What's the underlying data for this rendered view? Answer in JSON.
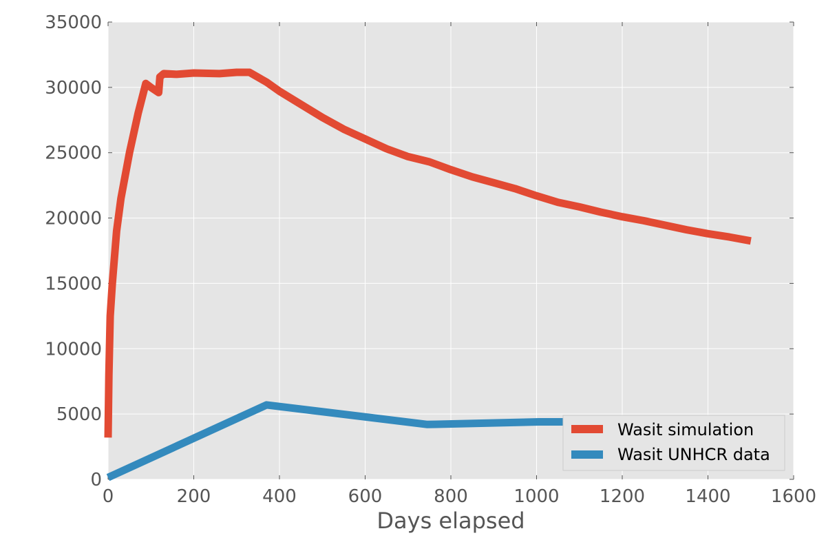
{
  "chart_data": {
    "type": "line",
    "title": "",
    "xlabel": "Days elapsed",
    "ylabel": "",
    "xlim": [
      0,
      1600
    ],
    "ylim": [
      0,
      35000
    ],
    "xticks": [
      0,
      200,
      400,
      600,
      800,
      1000,
      1200,
      1400,
      1600
    ],
    "yticks": [
      0,
      5000,
      10000,
      15000,
      20000,
      25000,
      30000,
      35000
    ],
    "grid": true,
    "legend_position": "lower-right",
    "colors": {
      "background": "#e5e5e5",
      "grid": "#ffffff"
    },
    "series": [
      {
        "name": "Wasit simulation",
        "color": "#e24a33",
        "points": [
          [
            0,
            3200
          ],
          [
            2,
            8000
          ],
          [
            5,
            12500
          ],
          [
            10,
            15000
          ],
          [
            20,
            19000
          ],
          [
            30,
            21500
          ],
          [
            50,
            25000
          ],
          [
            70,
            28000
          ],
          [
            88,
            30300
          ],
          [
            100,
            30000
          ],
          [
            118,
            29600
          ],
          [
            121,
            30800
          ],
          [
            130,
            31050
          ],
          [
            160,
            31000
          ],
          [
            200,
            31100
          ],
          [
            260,
            31050
          ],
          [
            300,
            31150
          ],
          [
            330,
            31150
          ],
          [
            370,
            30400
          ],
          [
            400,
            29700
          ],
          [
            450,
            28700
          ],
          [
            500,
            27700
          ],
          [
            550,
            26800
          ],
          [
            600,
            26050
          ],
          [
            650,
            25300
          ],
          [
            700,
            24700
          ],
          [
            750,
            24300
          ],
          [
            800,
            23700
          ],
          [
            850,
            23150
          ],
          [
            900,
            22700
          ],
          [
            950,
            22250
          ],
          [
            1000,
            21700
          ],
          [
            1050,
            21200
          ],
          [
            1100,
            20850
          ],
          [
            1150,
            20450
          ],
          [
            1200,
            20100
          ],
          [
            1250,
            19800
          ],
          [
            1300,
            19450
          ],
          [
            1350,
            19100
          ],
          [
            1400,
            18800
          ],
          [
            1450,
            18550
          ],
          [
            1500,
            18250
          ]
        ]
      },
      {
        "name": "Wasit UNHCR data",
        "color": "#348abd",
        "points": [
          [
            0,
            150
          ],
          [
            370,
            5700
          ],
          [
            745,
            4200
          ],
          [
            1005,
            4400
          ],
          [
            1070,
            4400
          ]
        ]
      }
    ]
  }
}
